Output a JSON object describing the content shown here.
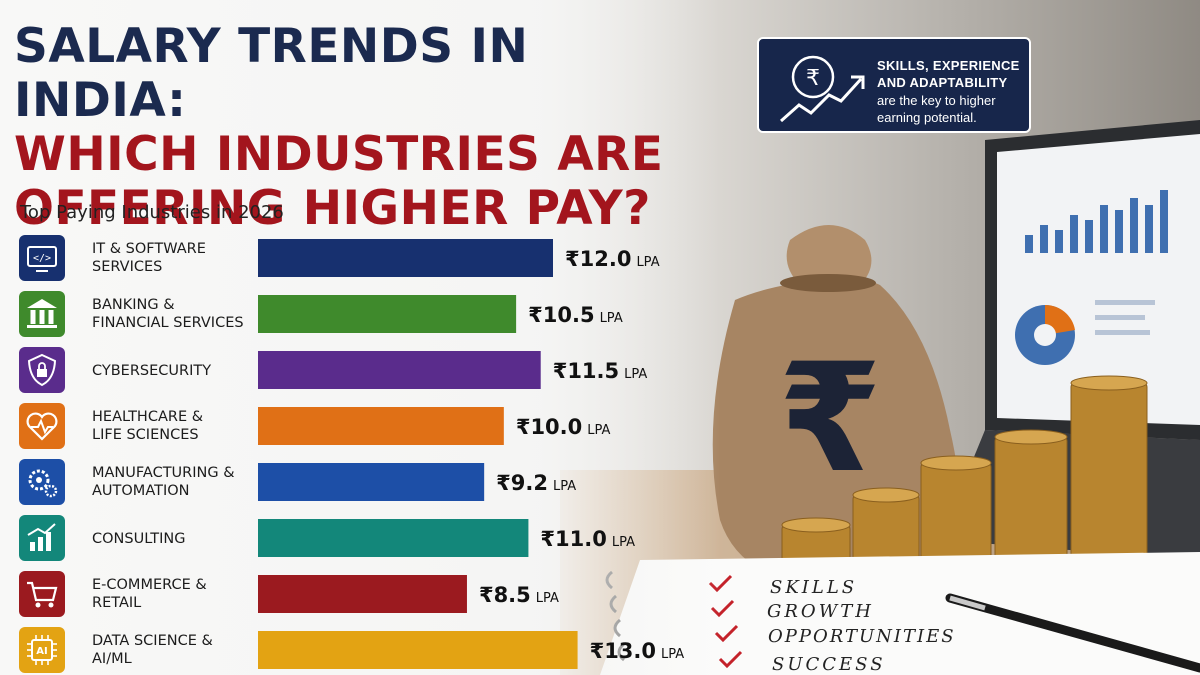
{
  "header": {
    "title_line1": "SALARY TRENDS IN INDIA:",
    "title_line2": "WHICH INDUSTRIES ARE",
    "title_line3": "OFFERING HIGHER PAY?"
  },
  "callout": {
    "line1": "SKILLS, EXPERIENCE",
    "line2": "AND ADAPTABILITY",
    "line3": "are the key to higher",
    "line4": "earning potential."
  },
  "notepad": {
    "items": [
      "SKILLS",
      "GROWTH",
      "OPPORTUNITIES",
      "SUCCESS"
    ]
  },
  "chart_data": {
    "type": "bar",
    "title": "Top Paying Industries in 2026",
    "orientation": "horizontal",
    "currency_symbol": "₹",
    "unit": "LPA",
    "grid": false,
    "categories": [
      [
        "IT & SOFTWARE",
        "SERVICES"
      ],
      [
        "BANKING &",
        "FINANCIAL SERVICES"
      ],
      [
        "CYBERSECURITY"
      ],
      [
        "HEALTHCARE &",
        "LIFE SCIENCES"
      ],
      [
        "MANUFACTURING &",
        "AUTOMATION"
      ],
      [
        "CONSULTING"
      ],
      [
        "E-COMMERCE &",
        "RETAIL"
      ],
      [
        "DATA SCIENCE &",
        "AI/ML"
      ]
    ],
    "values": [
      12.0,
      10.5,
      11.5,
      10.0,
      9.2,
      11.0,
      8.5,
      13.0
    ],
    "value_labels": [
      "₹12.0",
      "₹10.5",
      "₹11.5",
      "₹10.0",
      "₹9.2",
      "₹11.0",
      "₹8.5",
      "₹13.0"
    ],
    "icons": [
      "code-monitor-icon",
      "bank-icon",
      "shield-lock-icon",
      "heart-pulse-icon",
      "gears-icon",
      "growth-chart-icon",
      "shopping-cart-icon",
      "ai-chip-icon"
    ],
    "colors": [
      "#17306f",
      "#3f8a2c",
      "#5a2c8c",
      "#e07016",
      "#1d4fa7",
      "#13877a",
      "#9b1a1f",
      "#e3a313"
    ]
  }
}
